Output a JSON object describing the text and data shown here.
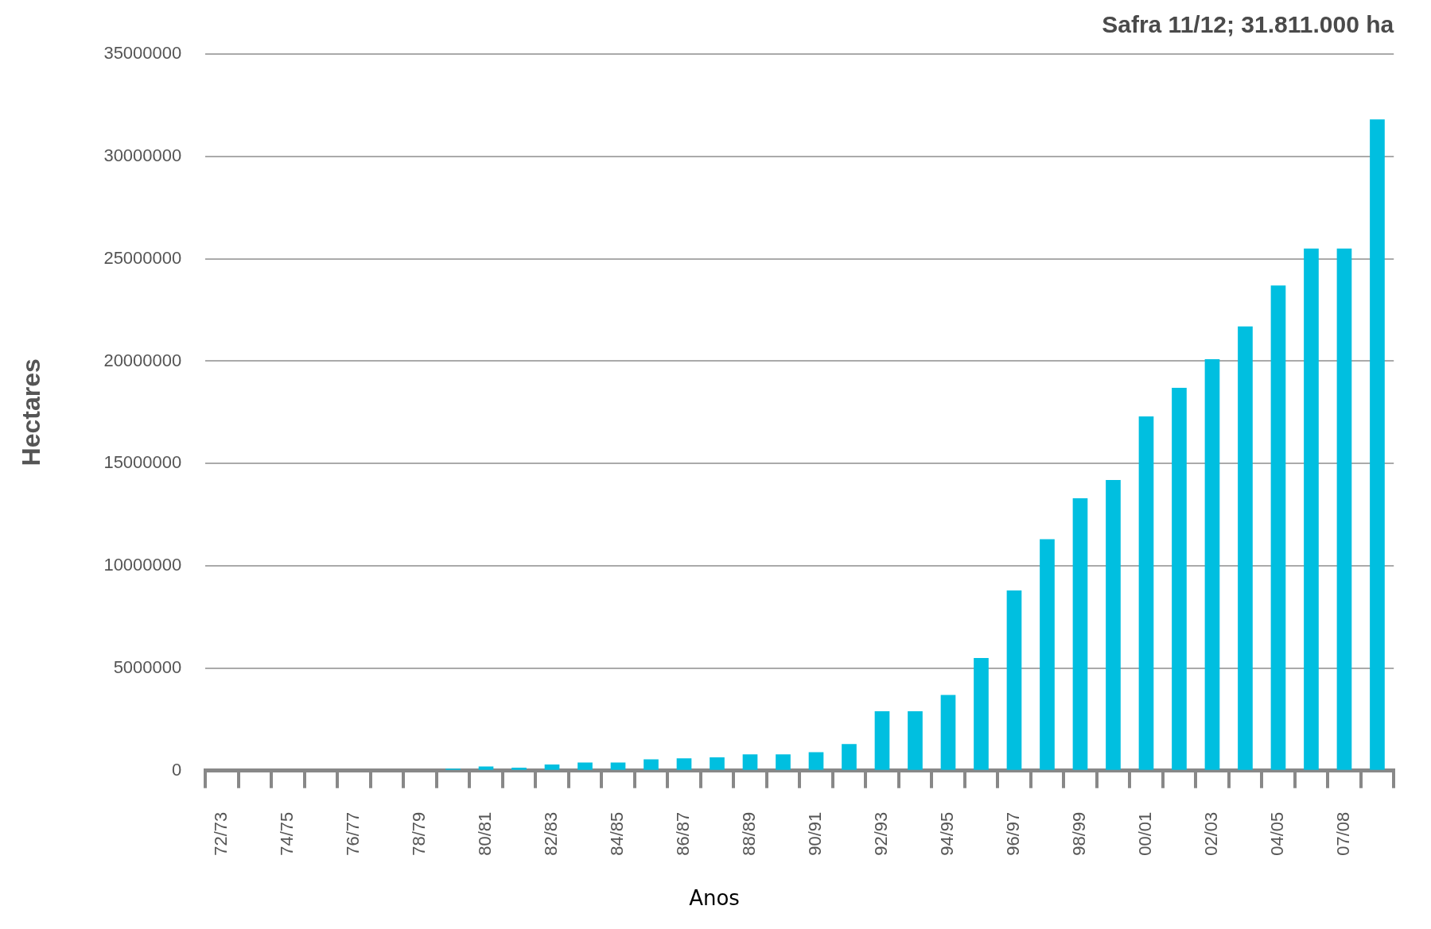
{
  "chart_data": {
    "type": "bar",
    "xlabel": "Anos",
    "ylabel": "Hectares",
    "annotations": [
      "Safra 11/12; 31.811.000 ha"
    ],
    "categories": [
      "72/73",
      null,
      "74/75",
      null,
      "76/77",
      null,
      "78/79",
      null,
      "80/81",
      null,
      "82/83",
      null,
      "84/85",
      null,
      "86/87",
      null,
      "88/89",
      null,
      "90/91",
      null,
      "92/93",
      null,
      "94/95",
      null,
      "96/97",
      null,
      "98/99",
      null,
      "00/01",
      null,
      "02/03",
      null,
      "04/05",
      null,
      "07/08",
      null
    ],
    "values": [
      0,
      0,
      0,
      0,
      0,
      0,
      0,
      100000,
      200000,
      150000,
      300000,
      400000,
      400000,
      550000,
      600000,
      650000,
      800000,
      800000,
      900000,
      1300000,
      2900000,
      2900000,
      3700000,
      5500000,
      8800000,
      11300000,
      13300000,
      14200000,
      17300000,
      18700000,
      20100000,
      21700000,
      23700000,
      25500000,
      25500000,
      31811000
    ],
    "color": "#00bfe0",
    "ylim": [
      0,
      35000000
    ],
    "yticks": [
      0,
      5000000,
      10000000,
      15000000,
      20000000,
      25000000,
      30000000,
      35000000
    ],
    "grid": "y"
  }
}
